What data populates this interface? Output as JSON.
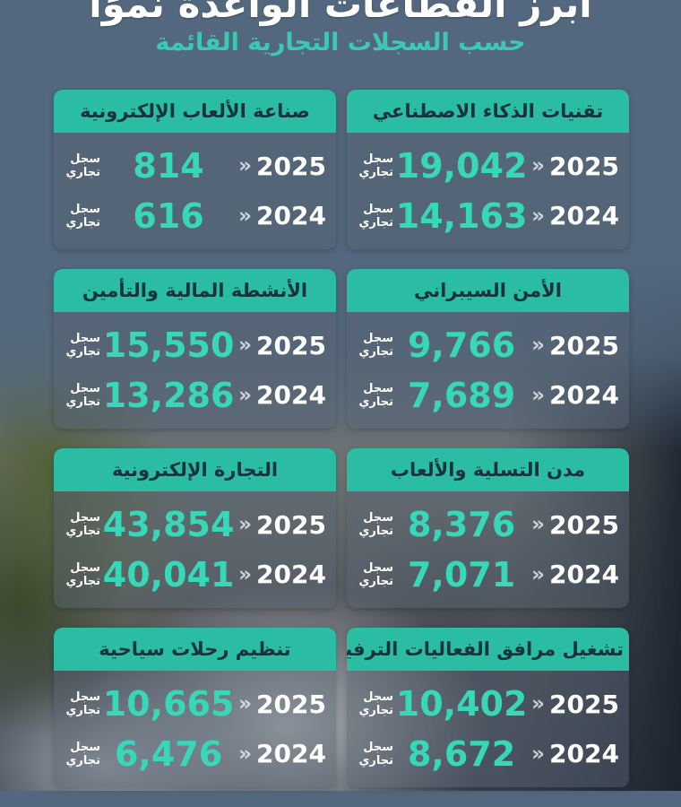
{
  "page": {
    "title": "أبرز القطاعات الواعدة نموًا",
    "subtitle": "حسب السجلات التجارية القائمة"
  },
  "labels": {
    "chevron": "«",
    "unit_line1": "سجل",
    "unit_line2": "تجاري"
  },
  "colors": {
    "accent_teal_header": "#2bbca4",
    "number_teal": "#36d8b8",
    "header_text_navy": "#17333f",
    "background_slate": "#53687e",
    "subtitle_teal": "#3bc9b2"
  },
  "cards": [
    {
      "title": "تقنيات الذكاء الاصطناعي",
      "rows": [
        {
          "year": "2025",
          "value": "19,042"
        },
        {
          "year": "2024",
          "value": "14,163"
        }
      ]
    },
    {
      "title": "صناعة الألعاب الإلكترونية",
      "rows": [
        {
          "year": "2025",
          "value": "814"
        },
        {
          "year": "2024",
          "value": "616"
        }
      ]
    },
    {
      "title": "الأمن السيبراني",
      "rows": [
        {
          "year": "2025",
          "value": "9,766"
        },
        {
          "year": "2024",
          "value": "7,689"
        }
      ]
    },
    {
      "title": "الأنشطة المالية والتأمين",
      "rows": [
        {
          "year": "2025",
          "value": "15,550"
        },
        {
          "year": "2024",
          "value": "13,286"
        }
      ]
    },
    {
      "title": "مدن التسلية والألعاب",
      "rows": [
        {
          "year": "2025",
          "value": "8,376"
        },
        {
          "year": "2024",
          "value": "7,071"
        }
      ]
    },
    {
      "title": "التجارة الإلكترونية",
      "rows": [
        {
          "year": "2025",
          "value": "43,854"
        },
        {
          "year": "2024",
          "value": "40,041"
        }
      ]
    },
    {
      "title": "تشغيل مرافق الفعاليات الترفيهية",
      "rows": [
        {
          "year": "2025",
          "value": "10,402"
        },
        {
          "year": "2024",
          "value": "8,672"
        }
      ]
    },
    {
      "title": "تنظيم رحلات سياحية",
      "rows": [
        {
          "year": "2025",
          "value": "10,665"
        },
        {
          "year": "2024",
          "value": "6,476"
        }
      ]
    }
  ],
  "chart_data": {
    "type": "table",
    "title": "أبرز القطاعات الواعدة نموًا",
    "subtitle": "حسب السجلات التجارية القائمة",
    "unit": "سجل تجاري",
    "categories": [
      "تقنيات الذكاء الاصطناعي",
      "صناعة الألعاب الإلكترونية",
      "الأمن السيبراني",
      "الأنشطة المالية والتأمين",
      "مدن التسلية والألعاب",
      "التجارة الإلكترونية",
      "تشغيل مرافق الفعاليات الترفيهية",
      "تنظيم رحلات سياحية"
    ],
    "series": [
      {
        "name": "2025",
        "values": [
          19042,
          814,
          9766,
          15550,
          8376,
          43854,
          10402,
          10665
        ]
      },
      {
        "name": "2024",
        "values": [
          14163,
          616,
          7689,
          13286,
          7071,
          40041,
          8672,
          6476
        ]
      }
    ],
    "legend_position": "inline-rows",
    "grid": false
  }
}
